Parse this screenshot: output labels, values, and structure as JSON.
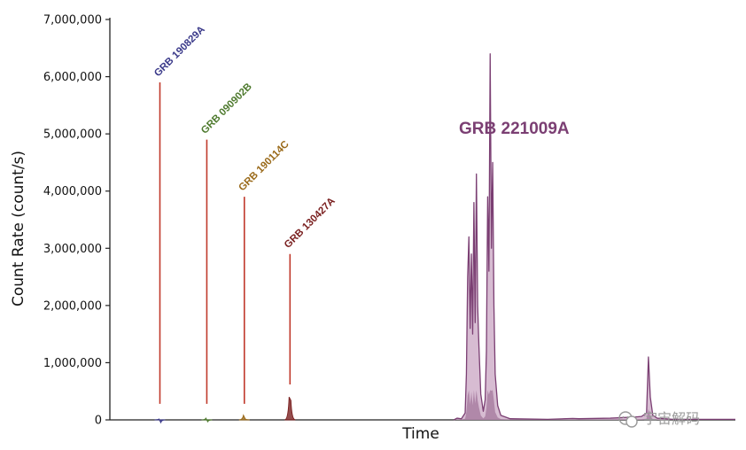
{
  "chart_data": {
    "type": "area",
    "title": "GRB 221009A",
    "xlabel": "Time",
    "ylabel": "Count Rate (count/s)",
    "ylim": [
      0,
      7000000
    ],
    "yticks": [
      0,
      1000000,
      2000000,
      3000000,
      4000000,
      5000000,
      6000000,
      7000000
    ],
    "ytick_labels": [
      "0",
      "1,000,000",
      "2,000,000",
      "3,000,000",
      "4,000,000",
      "5,000,000",
      "6,000,000",
      "7,000,000"
    ],
    "xticks_visible": false,
    "grid": false,
    "bursts": [
      {
        "name": "GRB 190829A",
        "color": "#3b3a8a",
        "line_color": "#c0392b",
        "x": 0.08,
        "peak_value": 5900000,
        "line_bottom": 280000,
        "bump_height": 15000
      },
      {
        "name": "GRB 090902B",
        "color": "#4e7a2e",
        "line_color": "#c0392b",
        "x": 0.155,
        "peak_value": 4900000,
        "line_bottom": 280000,
        "bump_height": 30000
      },
      {
        "name": "GRB 190114C",
        "color": "#9a6a1a",
        "line_color": "#c0392b",
        "x": 0.215,
        "peak_value": 3900000,
        "line_bottom": 280000,
        "bump_height": 80000
      },
      {
        "name": "GRB 130427A",
        "color": "#7a2020",
        "line_color": "#c0392b",
        "x": 0.288,
        "peak_value": 2900000,
        "line_bottom": 620000,
        "bump_height": 400000
      }
    ],
    "main_burst": {
      "name": "GRB 221009A",
      "color": "#7b3f73",
      "fill_color": "#c9a6c3",
      "dark_fill_color": "#a97fa2",
      "profile": [
        [
          0.55,
          0
        ],
        [
          0.555,
          30000
        ],
        [
          0.562,
          20000
        ],
        [
          0.568,
          120000
        ],
        [
          0.57,
          800000
        ],
        [
          0.572,
          2500000
        ],
        [
          0.574,
          3200000
        ],
        [
          0.576,
          1600000
        ],
        [
          0.578,
          2900000
        ],
        [
          0.58,
          1500000
        ],
        [
          0.582,
          3800000
        ],
        [
          0.584,
          1700000
        ],
        [
          0.586,
          4300000
        ],
        [
          0.588,
          2000000
        ],
        [
          0.59,
          1300000
        ],
        [
          0.593,
          450000
        ],
        [
          0.597,
          150000
        ],
        [
          0.6,
          350000
        ],
        [
          0.602,
          1200000
        ],
        [
          0.604,
          3900000
        ],
        [
          0.606,
          2600000
        ],
        [
          0.608,
          6400000
        ],
        [
          0.61,
          3000000
        ],
        [
          0.612,
          4500000
        ],
        [
          0.614,
          2000000
        ],
        [
          0.616,
          800000
        ],
        [
          0.62,
          250000
        ],
        [
          0.625,
          80000
        ],
        [
          0.64,
          20000
        ],
        [
          0.7,
          10000
        ],
        [
          0.74,
          25000
        ],
        [
          0.75,
          20000
        ],
        [
          0.8,
          30000
        ],
        [
          0.84,
          50000
        ],
        [
          0.85,
          60000
        ],
        [
          0.858,
          120000
        ],
        [
          0.861,
          1100000
        ],
        [
          0.864,
          400000
        ],
        [
          0.868,
          80000
        ],
        [
          0.875,
          30000
        ],
        [
          0.9,
          10000
        ],
        [
          0.95,
          10000
        ],
        [
          1.0,
          10000
        ]
      ]
    }
  },
  "watermark": "宇宙解码"
}
